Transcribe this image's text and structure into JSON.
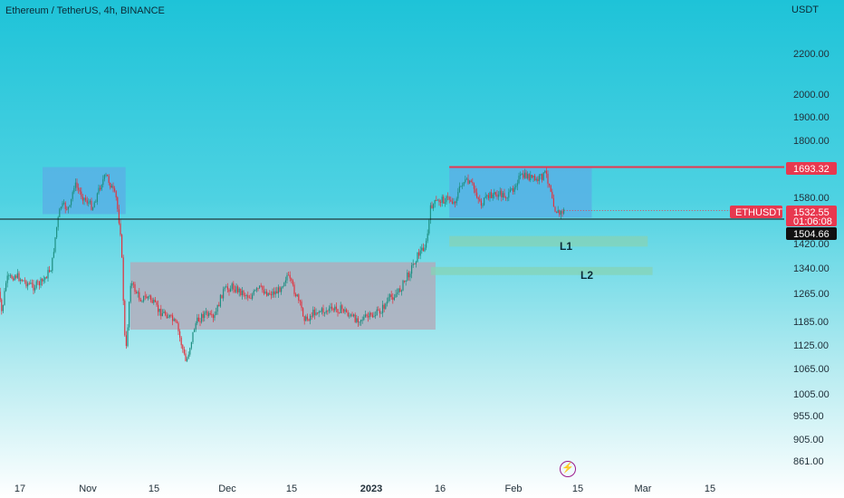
{
  "header": {
    "symbol_title": "Ethereum / TetherUS, 4h, BINANCE"
  },
  "price_axis": {
    "title": "USDT",
    "ticks": [
      "2200.00",
      "2000.00",
      "1900.00",
      "1800.00",
      "1580.00",
      "1420.00",
      "1340.00",
      "1265.00",
      "1185.00",
      "1125.00",
      "1065.00",
      "1005.00",
      "955.00",
      "905.00",
      "861.00"
    ]
  },
  "time_axis": {
    "ticks": [
      {
        "label": "17",
        "bold": false
      },
      {
        "label": "Nov",
        "bold": false
      },
      {
        "label": "15",
        "bold": false
      },
      {
        "label": "Dec",
        "bold": false
      },
      {
        "label": "15",
        "bold": false
      },
      {
        "label": "2023",
        "bold": true
      },
      {
        "label": "16",
        "bold": false
      },
      {
        "label": "Feb",
        "bold": false
      },
      {
        "label": "15",
        "bold": false
      },
      {
        "label": "Mar",
        "bold": false
      },
      {
        "label": "15",
        "bold": false
      }
    ]
  },
  "price_tags": {
    "resistance": "1693.32",
    "symbol": "ETHUSDT",
    "last_price": "1532.55",
    "countdown": "01:06:08",
    "crosshair": "1504.66"
  },
  "zones": {
    "l1": "L1",
    "l2": "L2"
  },
  "colors": {
    "candle_up": "#1f8f82",
    "candle_down": "#e0333f",
    "resistance_line": "#e8384f",
    "blue_box": "#5aaee6",
    "gray_box": "#b3a9b8",
    "green_zone": "#86d3b6",
    "tag_red": "#e8384f",
    "tag_black": "#111111"
  },
  "chart_data": {
    "type": "candlestick",
    "symbol": "ETHUSDT",
    "interval": "4h",
    "exchange": "BINANCE",
    "ylim": [
      861,
      2250
    ],
    "price_path": [
      [
        "Oct 12",
        1290
      ],
      [
        "Oct 13",
        1210
      ],
      [
        "Oct 14",
        1305
      ],
      [
        "Oct 16",
        1320
      ],
      [
        "Oct 18",
        1300
      ],
      [
        "Oct 20",
        1285
      ],
      [
        "Oct 22",
        1300
      ],
      [
        "Oct 24",
        1345
      ],
      [
        "Oct 25",
        1465
      ],
      [
        "Oct 26",
        1550
      ],
      [
        "Oct 28",
        1540
      ],
      [
        "Oct 29",
        1630
      ],
      [
        "Oct 31",
        1580
      ],
      [
        "Nov 2",
        1545
      ],
      [
        "Nov 4",
        1640
      ],
      [
        "Nov 5",
        1660
      ],
      [
        "Nov 7",
        1575
      ],
      [
        "Nov 8",
        1450
      ],
      [
        "Nov 9",
        1090
      ],
      [
        "Nov 10",
        1300
      ],
      [
        "Nov 12",
        1250
      ],
      [
        "Nov 14",
        1255
      ],
      [
        "Nov 16",
        1215
      ],
      [
        "Nov 18",
        1205
      ],
      [
        "Nov 20",
        1175
      ],
      [
        "Nov 22",
        1080
      ],
      [
        "Nov 24",
        1180
      ],
      [
        "Nov 26",
        1210
      ],
      [
        "Nov 28",
        1190
      ],
      [
        "Nov 30",
        1270
      ],
      [
        "Dec 2",
        1285
      ],
      [
        "Dec 4",
        1270
      ],
      [
        "Dec 6",
        1255
      ],
      [
        "Dec 8",
        1280
      ],
      [
        "Dec 10",
        1265
      ],
      [
        "Dec 12",
        1270
      ],
      [
        "Dec 14",
        1320
      ],
      [
        "Dec 16",
        1260
      ],
      [
        "Dec 18",
        1190
      ],
      [
        "Dec 20",
        1215
      ],
      [
        "Dec 22",
        1215
      ],
      [
        "Dec 24",
        1220
      ],
      [
        "Dec 26",
        1220
      ],
      [
        "Dec 28",
        1195
      ],
      [
        "Dec 30",
        1195
      ],
      [
        "Jan 1",
        1200
      ],
      [
        "Jan 3",
        1215
      ],
      [
        "Jan 5",
        1250
      ],
      [
        "Jan 7",
        1270
      ],
      [
        "Jan 9",
        1320
      ],
      [
        "Jan 11",
        1380
      ],
      [
        "Jan 13",
        1420
      ],
      [
        "Jan 14",
        1550
      ],
      [
        "Jan 16",
        1570
      ],
      [
        "Jan 18",
        1575
      ],
      [
        "Jan 19",
        1560
      ],
      [
        "Jan 21",
        1640
      ],
      [
        "Jan 23",
        1625
      ],
      [
        "Jan 25",
        1555
      ],
      [
        "Jan 27",
        1590
      ],
      [
        "Jan 29",
        1590
      ],
      [
        "Jan 31",
        1585
      ],
      [
        "Feb 2",
        1650
      ],
      [
        "Feb 4",
        1660
      ],
      [
        "Feb 6",
        1640
      ],
      [
        "Feb 8",
        1670
      ],
      [
        "Feb 9",
        1620
      ],
      [
        "Feb 10",
        1540
      ],
      [
        "Feb 11",
        1520
      ],
      [
        "Feb 12",
        1532.55
      ]
    ],
    "horizontal_lines": [
      {
        "price": 1693.32,
        "color": "#e8384f"
      },
      {
        "price": 1504.66,
        "color": "#111111"
      }
    ],
    "rectangles": [
      {
        "from": "Oct 22",
        "to": "Nov 9",
        "high": 1693,
        "low": 1520,
        "color": "#5aaee6"
      },
      {
        "from": "Nov 10",
        "to": "Jan 15",
        "high": 1360,
        "low": 1165,
        "color": "#b3a9b8"
      },
      {
        "from": "Jan 18",
        "to": "Feb 18",
        "high": 1693,
        "low": 1508,
        "color": "#5aaee6"
      },
      {
        "label": "L1",
        "from": "Jan 18",
        "to": "Mar 2",
        "high": 1445,
        "low": 1410,
        "color": "#86d3b6"
      },
      {
        "label": "L2",
        "from": "Jan 14",
        "to": "Mar 3",
        "high": 1345,
        "low": 1320,
        "color": "#86d3b6"
      }
    ]
  }
}
